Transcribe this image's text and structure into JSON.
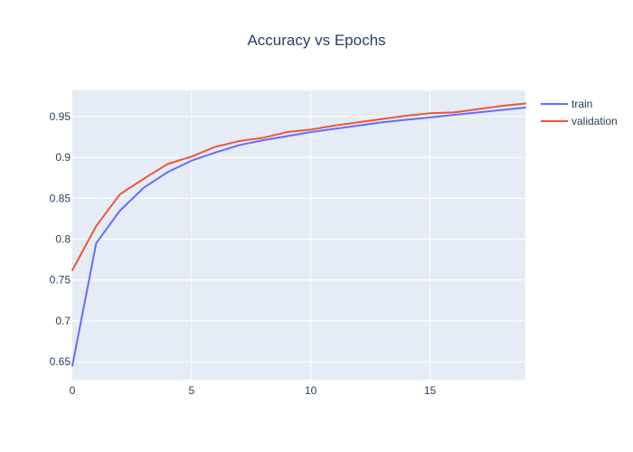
{
  "chart_data": {
    "type": "line",
    "title": "Accuracy vs Epochs",
    "xlabel": "",
    "ylabel": "",
    "x": [
      0,
      1,
      2,
      3,
      4,
      5,
      6,
      7,
      8,
      9,
      10,
      11,
      12,
      13,
      14,
      15,
      16,
      17,
      18,
      19
    ],
    "series": [
      {
        "name": "train",
        "color": "#636efa",
        "values": [
          0.645,
          0.795,
          0.835,
          0.863,
          0.882,
          0.896,
          0.906,
          0.915,
          0.921,
          0.926,
          0.931,
          0.935,
          0.939,
          0.943,
          0.946,
          0.949,
          0.952,
          0.955,
          0.958,
          0.961
        ]
      },
      {
        "name": "validation",
        "color": "#ef553b",
        "values": [
          0.762,
          0.816,
          0.855,
          0.874,
          0.892,
          0.901,
          0.913,
          0.92,
          0.924,
          0.931,
          0.934,
          0.939,
          0.943,
          0.947,
          0.951,
          0.954,
          0.955,
          0.959,
          0.963,
          0.966
        ]
      }
    ],
    "xlim": [
      0,
      19
    ],
    "ylim": [
      0.628,
      0.982
    ],
    "xticks": [
      0,
      5,
      10,
      15
    ],
    "xtick_labels": [
      "0",
      "5",
      "10",
      "15"
    ],
    "yticks": [
      0.65,
      0.7,
      0.75,
      0.8,
      0.85,
      0.9,
      0.95
    ],
    "ytick_labels": [
      "0.65",
      "0.7",
      "0.75",
      "0.8",
      "0.85",
      "0.9",
      "0.95"
    ],
    "grid": true,
    "legend_position": "top-right",
    "plot_background": "#e5ecf6"
  }
}
